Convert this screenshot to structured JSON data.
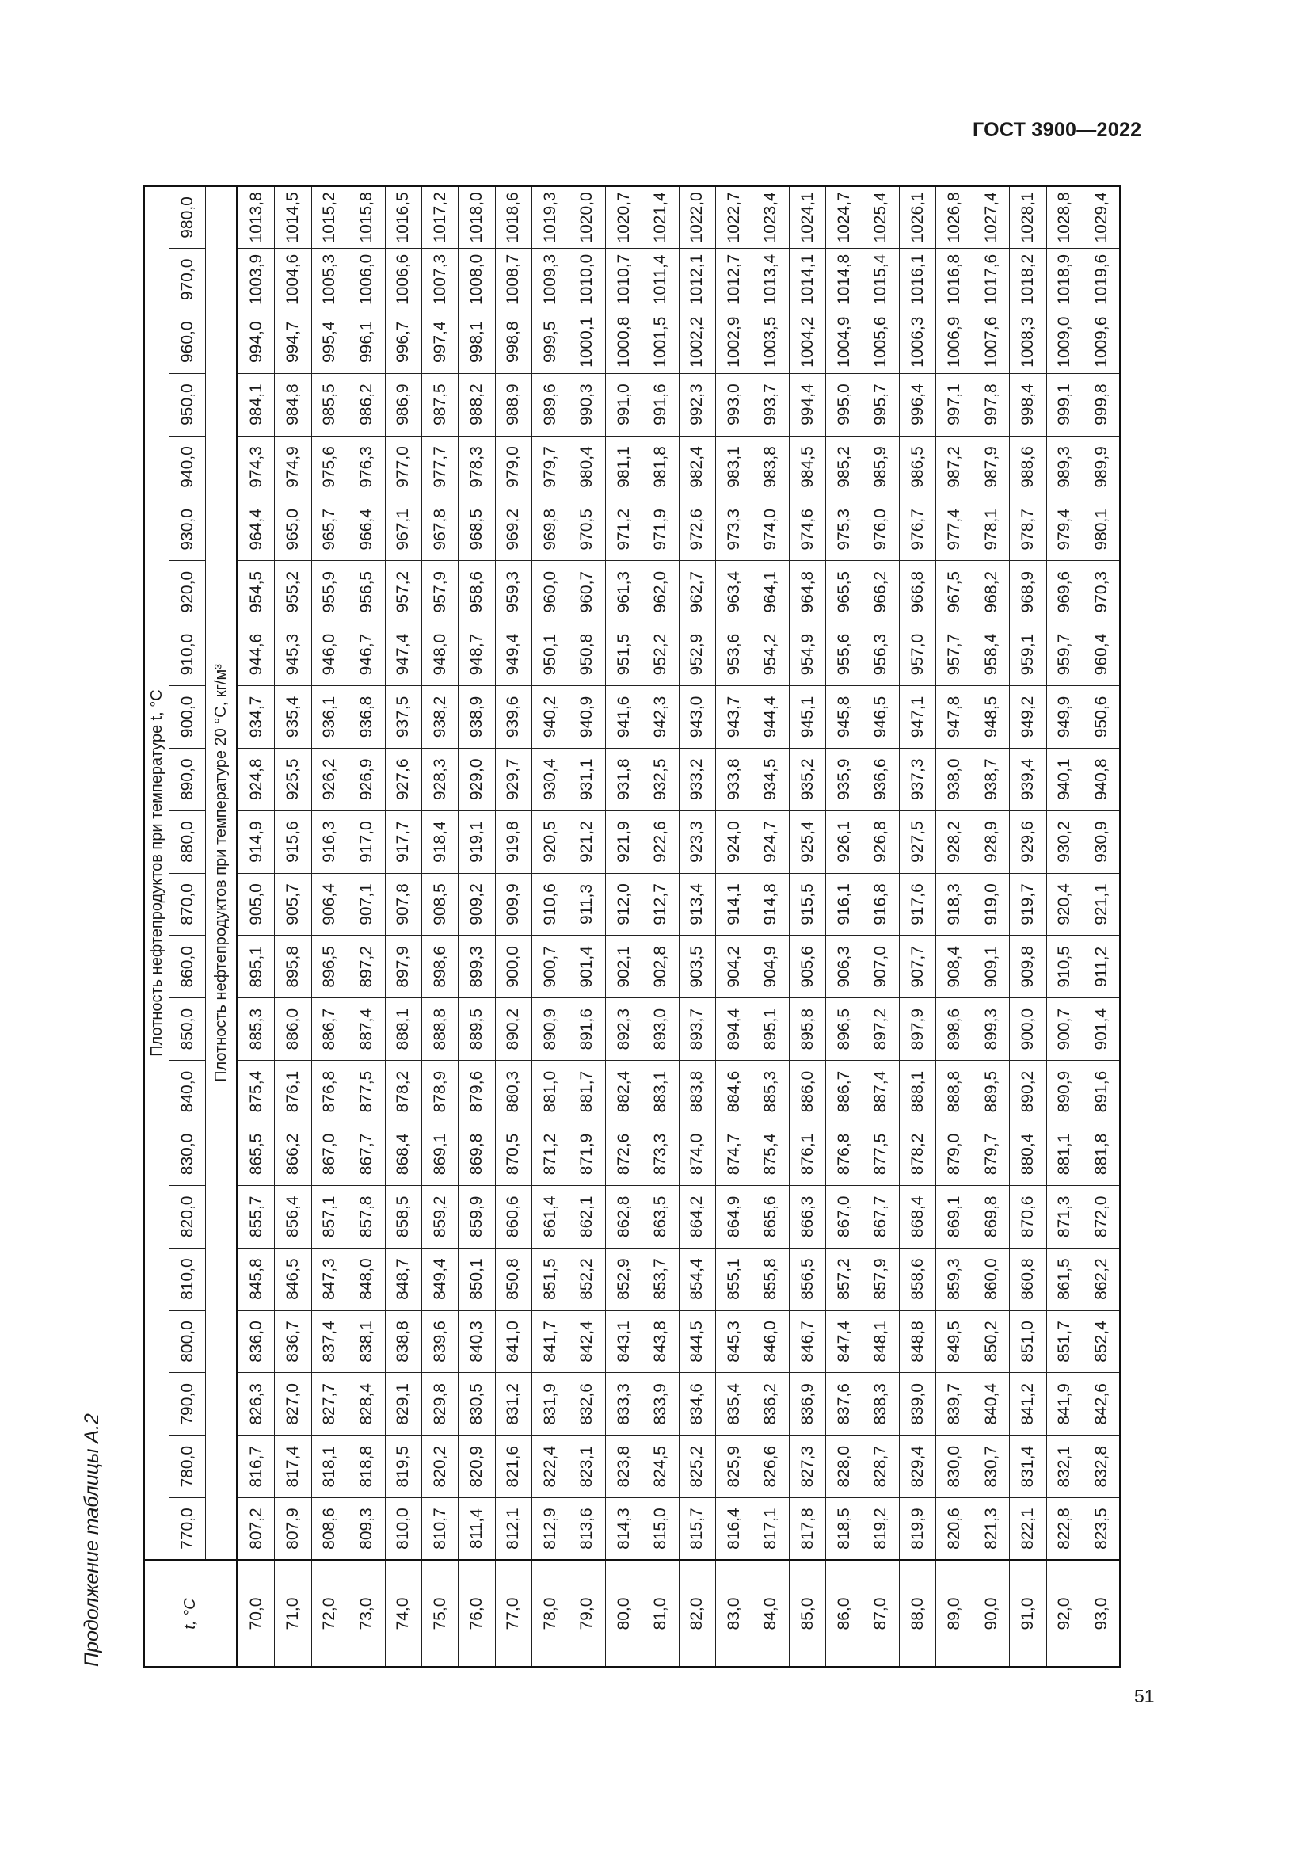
{
  "header": {
    "doc_code": "ГОСТ 3900—2022"
  },
  "caption": "Продолжение таблицы А.2",
  "page_number": "51",
  "table": {
    "t_header": "t, °C",
    "top_header": "Плотность нефтепродуктов при температуре t, °C",
    "sub_header": "Плотность нефтепродуктов при температуре 20 °C, кг/м³",
    "columns": [
      "770,0",
      "780,0",
      "790,0",
      "800,0",
      "810,0",
      "820,0",
      "830,0",
      "840,0",
      "850,0",
      "860,0",
      "870,0",
      "880,0",
      "890,0",
      "900,0",
      "910,0",
      "920,0",
      "930,0",
      "940,0",
      "950,0",
      "960,0",
      "970,0",
      "980,0"
    ],
    "rows": [
      {
        "t": "70,0",
        "values": [
          "807,2",
          "816,7",
          "826,3",
          "836,0",
          "845,8",
          "855,7",
          "865,5",
          "875,4",
          "885,3",
          "895,1",
          "905,0",
          "914,9",
          "924,8",
          "934,7",
          "944,6",
          "954,5",
          "964,4",
          "974,3",
          "984,1",
          "994,0",
          "1003,9",
          "1013,8"
        ]
      },
      {
        "t": "71,0",
        "values": [
          "807,9",
          "817,4",
          "827,0",
          "836,7",
          "846,5",
          "856,4",
          "866,2",
          "876,1",
          "886,0",
          "895,8",
          "905,7",
          "915,6",
          "925,5",
          "935,4",
          "945,3",
          "955,2",
          "965,0",
          "974,9",
          "984,8",
          "994,7",
          "1004,6",
          "1014,5"
        ]
      },
      {
        "t": "72,0",
        "values": [
          "808,6",
          "818,1",
          "827,7",
          "837,4",
          "847,3",
          "857,1",
          "867,0",
          "876,8",
          "886,7",
          "896,5",
          "906,4",
          "916,3",
          "926,2",
          "936,1",
          "946,0",
          "955,9",
          "965,7",
          "975,6",
          "985,5",
          "995,4",
          "1005,3",
          "1015,2"
        ]
      },
      {
        "t": "73,0",
        "values": [
          "809,3",
          "818,8",
          "828,4",
          "838,1",
          "848,0",
          "857,8",
          "867,7",
          "877,5",
          "887,4",
          "897,2",
          "907,1",
          "917,0",
          "926,9",
          "936,8",
          "946,7",
          "956,5",
          "966,4",
          "976,3",
          "986,2",
          "996,1",
          "1006,0",
          "1015,8"
        ]
      },
      {
        "t": "74,0",
        "values": [
          "810,0",
          "819,5",
          "829,1",
          "838,8",
          "848,7",
          "858,5",
          "868,4",
          "878,2",
          "888,1",
          "897,9",
          "907,8",
          "917,7",
          "927,6",
          "937,5",
          "947,4",
          "957,2",
          "967,1",
          "977,0",
          "986,9",
          "996,7",
          "1006,6",
          "1016,5"
        ]
      },
      {
        "t": "75,0",
        "values": [
          "810,7",
          "820,2",
          "829,8",
          "839,6",
          "849,4",
          "859,2",
          "869,1",
          "878,9",
          "888,8",
          "898,6",
          "908,5",
          "918,4",
          "928,3",
          "938,2",
          "948,0",
          "957,9",
          "967,8",
          "977,7",
          "987,5",
          "997,4",
          "1007,3",
          "1017,2"
        ]
      },
      {
        "t": "76,0",
        "values": [
          "811,4",
          "820,9",
          "830,5",
          "840,3",
          "850,1",
          "859,9",
          "869,8",
          "879,6",
          "889,5",
          "899,3",
          "909,2",
          "919,1",
          "929,0",
          "938,9",
          "948,7",
          "958,6",
          "968,5",
          "978,3",
          "988,2",
          "998,1",
          "1008,0",
          "1018,0"
        ]
      },
      {
        "t": "77,0",
        "values": [
          "812,1",
          "821,6",
          "831,2",
          "841,0",
          "850,8",
          "860,6",
          "870,5",
          "880,3",
          "890,2",
          "900,0",
          "909,9",
          "919,8",
          "929,7",
          "939,6",
          "949,4",
          "959,3",
          "969,2",
          "979,0",
          "988,9",
          "998,8",
          "1008,7",
          "1018,6"
        ]
      },
      {
        "t": "78,0",
        "values": [
          "812,9",
          "822,4",
          "831,9",
          "841,7",
          "851,5",
          "861,4",
          "871,2",
          "881,0",
          "890,9",
          "900,7",
          "910,6",
          "920,5",
          "930,4",
          "940,2",
          "950,1",
          "960,0",
          "969,8",
          "979,7",
          "989,6",
          "999,5",
          "1009,3",
          "1019,3"
        ]
      },
      {
        "t": "79,0",
        "values": [
          "813,6",
          "823,1",
          "832,6",
          "842,4",
          "852,2",
          "862,1",
          "871,9",
          "881,7",
          "891,6",
          "901,4",
          "911,3",
          "921,2",
          "931,1",
          "940,9",
          "950,8",
          "960,7",
          "970,5",
          "980,4",
          "990,3",
          "1000,1",
          "1010,0",
          "1020,0"
        ]
      },
      {
        "t": "80,0",
        "values": [
          "814,3",
          "823,8",
          "833,3",
          "843,1",
          "852,9",
          "862,8",
          "872,6",
          "882,4",
          "892,3",
          "902,1",
          "912,0",
          "921,9",
          "931,8",
          "941,6",
          "951,5",
          "961,3",
          "971,2",
          "981,1",
          "991,0",
          "1000,8",
          "1010,7",
          "1020,7"
        ]
      },
      {
        "t": "81,0",
        "values": [
          "815,0",
          "824,5",
          "833,9",
          "843,8",
          "853,7",
          "863,5",
          "873,3",
          "883,1",
          "893,0",
          "902,8",
          "912,7",
          "922,6",
          "932,5",
          "942,3",
          "952,2",
          "962,0",
          "971,9",
          "981,8",
          "991,6",
          "1001,5",
          "1011,4",
          "1021,4"
        ]
      },
      {
        "t": "82,0",
        "values": [
          "815,7",
          "825,2",
          "834,6",
          "844,5",
          "854,4",
          "864,2",
          "874,0",
          "883,8",
          "893,7",
          "903,5",
          "913,4",
          "923,3",
          "933,2",
          "943,0",
          "952,9",
          "962,7",
          "972,6",
          "982,4",
          "992,3",
          "1002,2",
          "1012,1",
          "1022,0"
        ]
      },
      {
        "t": "83,0",
        "values": [
          "816,4",
          "825,9",
          "835,4",
          "845,3",
          "855,1",
          "864,9",
          "874,7",
          "884,6",
          "894,4",
          "904,2",
          "914,1",
          "924,0",
          "933,8",
          "943,7",
          "953,6",
          "963,4",
          "973,3",
          "983,1",
          "993,0",
          "1002,9",
          "1012,7",
          "1022,7"
        ]
      },
      {
        "t": "84,0",
        "values": [
          "817,1",
          "826,6",
          "836,2",
          "846,0",
          "855,8",
          "865,6",
          "875,4",
          "885,3",
          "895,1",
          "904,9",
          "914,8",
          "924,7",
          "934,5",
          "944,4",
          "954,2",
          "964,1",
          "974,0",
          "983,8",
          "993,7",
          "1003,5",
          "1013,4",
          "1023,4"
        ]
      },
      {
        "t": "85,0",
        "values": [
          "817,8",
          "827,3",
          "836,9",
          "846,7",
          "856,5",
          "866,3",
          "876,1",
          "886,0",
          "895,8",
          "905,6",
          "915,5",
          "925,4",
          "935,2",
          "945,1",
          "954,9",
          "964,8",
          "974,6",
          "984,5",
          "994,4",
          "1004,2",
          "1014,1",
          "1024,1"
        ]
      },
      {
        "t": "86,0",
        "values": [
          "818,5",
          "828,0",
          "837,6",
          "847,4",
          "857,2",
          "867,0",
          "876,8",
          "886,7",
          "896,5",
          "906,3",
          "916,1",
          "926,1",
          "935,9",
          "945,8",
          "955,6",
          "965,5",
          "975,3",
          "985,2",
          "995,0",
          "1004,9",
          "1014,8",
          "1024,7"
        ]
      },
      {
        "t": "87,0",
        "values": [
          "819,2",
          "828,7",
          "838,3",
          "848,1",
          "857,9",
          "867,7",
          "877,5",
          "887,4",
          "897,2",
          "907,0",
          "916,8",
          "926,8",
          "936,6",
          "946,5",
          "956,3",
          "966,2",
          "976,0",
          "985,9",
          "995,7",
          "1005,6",
          "1015,4",
          "1025,4"
        ]
      },
      {
        "t": "88,0",
        "values": [
          "819,9",
          "829,4",
          "839,0",
          "848,8",
          "858,6",
          "868,4",
          "878,2",
          "888,1",
          "897,9",
          "907,7",
          "917,6",
          "927,5",
          "937,3",
          "947,1",
          "957,0",
          "966,8",
          "976,7",
          "986,5",
          "996,4",
          "1006,3",
          "1016,1",
          "1026,1"
        ]
      },
      {
        "t": "89,0",
        "values": [
          "820,6",
          "830,0",
          "839,7",
          "849,5",
          "859,3",
          "869,1",
          "879,0",
          "888,8",
          "898,6",
          "908,4",
          "918,3",
          "928,2",
          "938,0",
          "947,8",
          "957,7",
          "967,5",
          "977,4",
          "987,2",
          "997,1",
          "1006,9",
          "1016,8",
          "1026,8"
        ]
      },
      {
        "t": "90,0",
        "values": [
          "821,3",
          "830,7",
          "840,4",
          "850,2",
          "860,0",
          "869,8",
          "879,7",
          "889,5",
          "899,3",
          "909,1",
          "919,0",
          "928,9",
          "938,7",
          "948,5",
          "958,4",
          "968,2",
          "978,1",
          "987,9",
          "997,8",
          "1007,6",
          "1017,6",
          "1027,4"
        ]
      },
      {
        "t": "91,0",
        "values": [
          "822,1",
          "831,4",
          "841,2",
          "851,0",
          "860,8",
          "870,6",
          "880,4",
          "890,2",
          "900,0",
          "909,8",
          "919,7",
          "929,6",
          "939,4",
          "949,2",
          "959,1",
          "968,9",
          "978,7",
          "988,6",
          "998,4",
          "1008,3",
          "1018,2",
          "1028,1"
        ]
      },
      {
        "t": "92,0",
        "values": [
          "822,8",
          "832,1",
          "841,9",
          "851,7",
          "861,5",
          "871,3",
          "881,1",
          "890,9",
          "900,7",
          "910,5",
          "920,4",
          "930,2",
          "940,1",
          "949,9",
          "959,7",
          "969,6",
          "979,4",
          "989,3",
          "999,1",
          "1009,0",
          "1018,9",
          "1028,8"
        ]
      },
      {
        "t": "93,0",
        "values": [
          "823,5",
          "832,8",
          "842,6",
          "852,4",
          "862,2",
          "872,0",
          "881,8",
          "891,6",
          "901,4",
          "911,2",
          "921,1",
          "930,9",
          "940,8",
          "950,6",
          "960,4",
          "970,3",
          "980,1",
          "989,9",
          "999,8",
          "1009,6",
          "1019,6",
          "1029,4"
        ]
      }
    ]
  }
}
